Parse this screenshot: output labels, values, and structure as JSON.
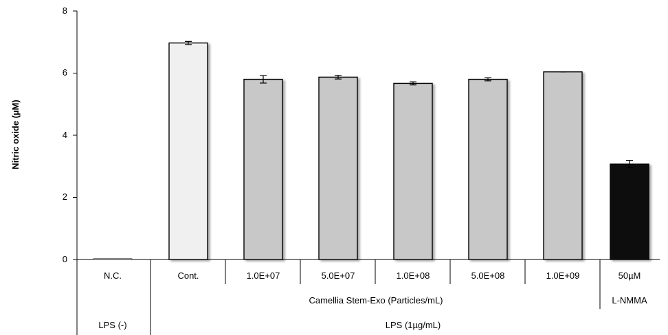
{
  "chart_data": {
    "type": "bar",
    "title": "",
    "ylabel": "Nitric oxide (µM)",
    "ylim": [
      0,
      8
    ],
    "yticks": [
      "0",
      "2",
      "4",
      "6",
      "8"
    ],
    "categories": [
      "N.C.",
      "Cont.",
      "1.0E+07",
      "5.0E+07",
      "1.0E+08",
      "5.0E+08",
      "1.0E+09",
      "50µM"
    ],
    "values": [
      0.0,
      6.97,
      5.8,
      5.87,
      5.67,
      5.8,
      6.04,
      3.07
    ],
    "errors": [
      0.0,
      0.05,
      0.12,
      0.06,
      0.05,
      0.05,
      0.0,
      0.12
    ],
    "group_labels_row2": {
      "camellia": "Camellia Stem-Exo (Particles/mL)",
      "lnmma": "L-NMMA"
    },
    "group_labels_row3": {
      "lps_neg": "LPS (-)",
      "lps_pos": "LPS (1µg/mL)"
    },
    "colors": {
      "control": "#f0f0f0",
      "sample": "#c8c8c8",
      "positive": "#0d0d0d",
      "outline": "#000000",
      "shadow": "#cfcfcf"
    }
  }
}
